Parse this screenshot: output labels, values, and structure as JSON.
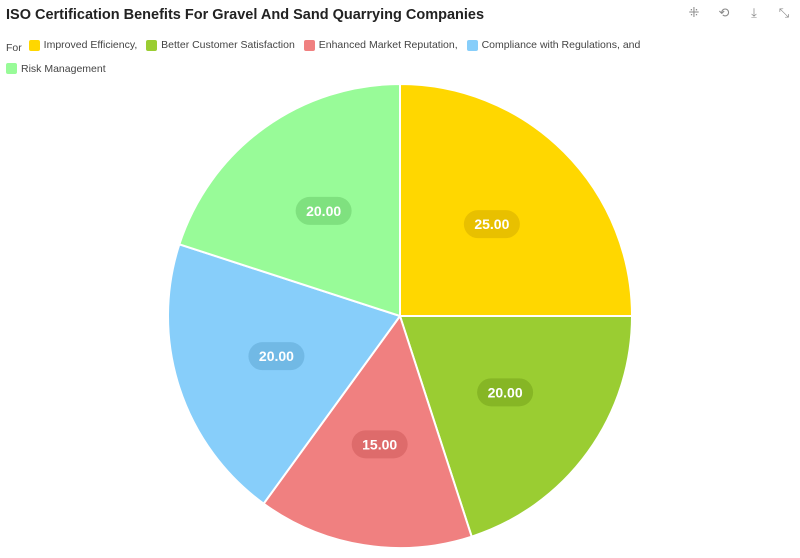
{
  "chart_data": {
    "type": "pie",
    "title": "ISO Certification Benefits For Gravel And Sand Quarrying Companies",
    "legend_prefix": "For",
    "legend_placement": "top-left",
    "slices": [
      {
        "label": "Improved Efficiency,",
        "value": 25,
        "display": "25.00",
        "color": "#FFD700",
        "label_bg": "#E0B800"
      },
      {
        "label": "Better Customer Satisfaction",
        "value": 20,
        "display": "20.00",
        "color": "#9ACD32",
        "label_bg": "#7FAE22"
      },
      {
        "label": "Enhanced Market Reputation,",
        "value": 15,
        "display": "15.00",
        "color": "#F08080",
        "label_bg": "#D86464"
      },
      {
        "label": "Compliance with Regulations, and",
        "value": 20,
        "display": "20.00",
        "color": "#87CEFA",
        "label_bg": "#6AB2DE"
      },
      {
        "label": "Risk Management",
        "value": 20,
        "display": "20.00",
        "color": "#98FB98",
        "label_bg": "#77D877"
      }
    ]
  },
  "toolbar": {
    "icons": [
      "zoom-in-icon",
      "reset-icon",
      "download-icon",
      "fullscreen-icon"
    ]
  }
}
